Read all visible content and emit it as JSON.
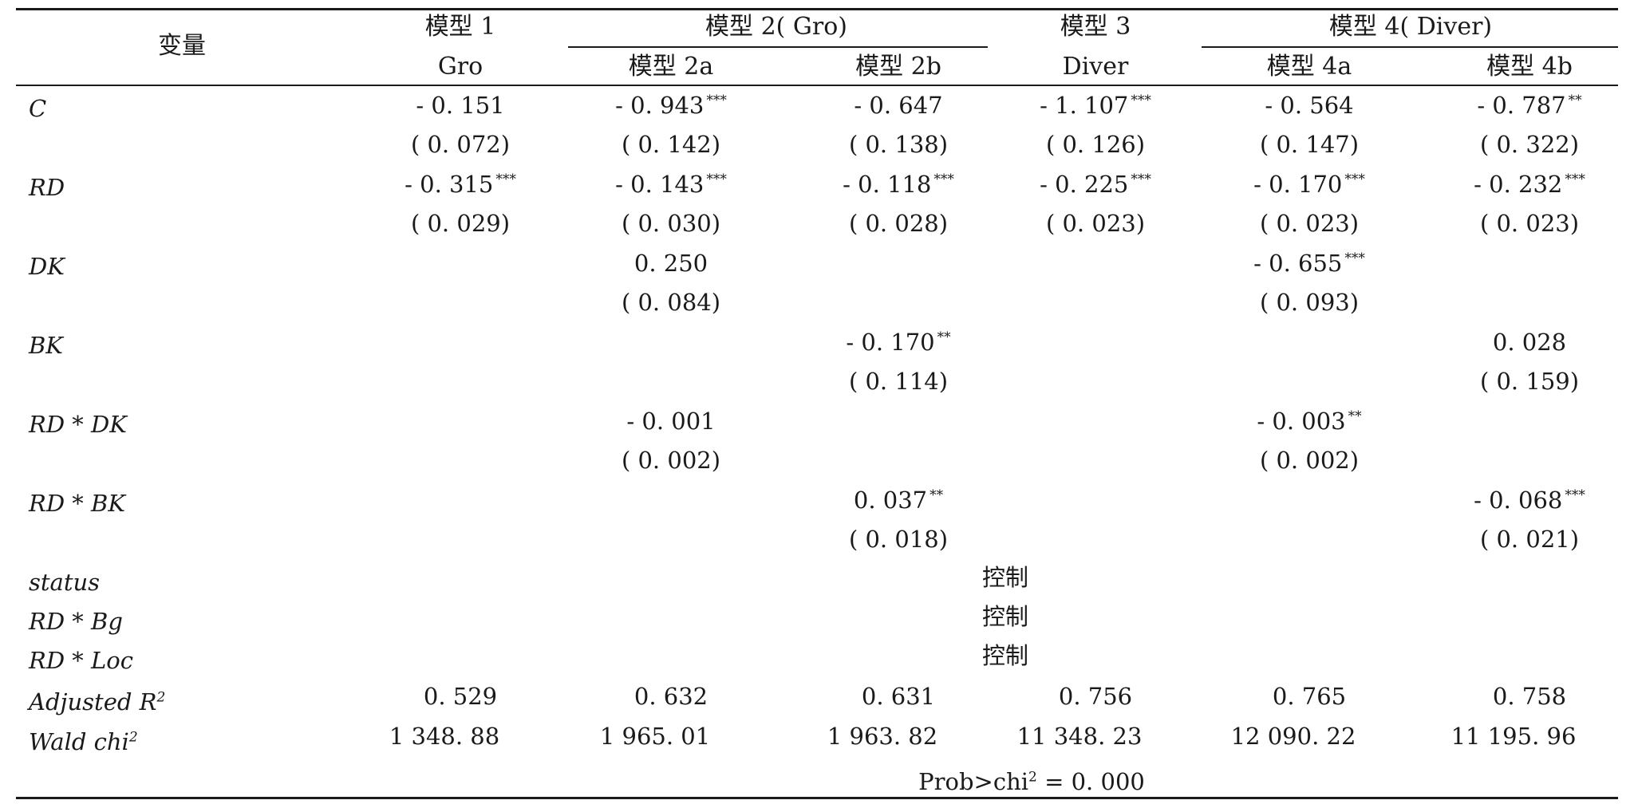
{
  "header": {
    "variable": "变量",
    "model1": {
      "title": "模型 1",
      "sub": "Gro"
    },
    "model2": {
      "title": "模型 2( Gro)",
      "subs": [
        "模型 2a",
        "模型 2b"
      ]
    },
    "model3": {
      "title": "模型 3",
      "sub": "Diver"
    },
    "model4": {
      "title": "模型 4( Diver)",
      "subs": [
        "模型 4a",
        "模型 4b"
      ]
    }
  },
  "rows": [
    {
      "var": "C",
      "coef": [
        {
          "v": "- 0. 151",
          "s": ""
        },
        {
          "v": "- 0. 943",
          "s": "***"
        },
        {
          "v": "- 0. 647",
          "s": ""
        },
        {
          "v": "- 1. 107",
          "s": "***"
        },
        {
          "v": "- 0. 564",
          "s": ""
        },
        {
          "v": "- 0. 787",
          "s": "**"
        }
      ],
      "se": [
        "( 0. 072)",
        "( 0. 142)",
        "( 0. 138)",
        "( 0. 126)",
        "( 0. 147)",
        "( 0. 322)"
      ]
    },
    {
      "var": "RD",
      "coef": [
        {
          "v": "- 0. 315",
          "s": "***"
        },
        {
          "v": "- 0. 143",
          "s": "***"
        },
        {
          "v": "- 0. 118",
          "s": "***"
        },
        {
          "v": "- 0. 225",
          "s": "***"
        },
        {
          "v": "- 0. 170",
          "s": "***"
        },
        {
          "v": "- 0. 232",
          "s": "***"
        }
      ],
      "se": [
        "( 0. 029)",
        "( 0. 030)",
        "( 0. 028)",
        "( 0. 023)",
        "( 0. 023)",
        "( 0. 023)"
      ]
    },
    {
      "var": "DK",
      "coef": [
        null,
        {
          "v": "0. 250",
          "s": ""
        },
        null,
        null,
        {
          "v": "- 0. 655",
          "s": "***"
        },
        null
      ],
      "se": [
        null,
        "( 0. 084)",
        null,
        null,
        "( 0. 093)",
        null
      ]
    },
    {
      "var": "BK",
      "coef": [
        null,
        null,
        {
          "v": "- 0. 170",
          "s": "**"
        },
        null,
        null,
        {
          "v": "0. 028",
          "s": ""
        }
      ],
      "se": [
        null,
        null,
        "( 0. 114)",
        null,
        null,
        "( 0. 159)"
      ]
    },
    {
      "var": "RD * DK",
      "coef": [
        null,
        {
          "v": "- 0. 001",
          "s": ""
        },
        null,
        null,
        {
          "v": "- 0. 003",
          "s": "**"
        },
        null
      ],
      "se": [
        null,
        "( 0. 002)",
        null,
        null,
        "( 0. 002)",
        null
      ]
    },
    {
      "var": "RD * BK",
      "coef": [
        null,
        null,
        {
          "v": "0. 037",
          "s": "**"
        },
        null,
        null,
        {
          "v": "- 0. 068",
          "s": "***"
        }
      ],
      "se": [
        null,
        null,
        "( 0. 018)",
        null,
        null,
        "( 0. 021)"
      ]
    }
  ],
  "controls": [
    {
      "var": "status",
      "value": "控制"
    },
    {
      "var": "RD * Bg",
      "value": "控制"
    },
    {
      "var": "RD * Loc",
      "value": "控制"
    }
  ],
  "adjusted_r2": {
    "label": "Adjusted R",
    "sup": "2",
    "values": [
      "0. 529",
      "0. 632",
      "0. 631",
      "0. 756",
      "0. 765",
      "0. 758"
    ]
  },
  "wald": {
    "label": "Wald chi",
    "sup": "2",
    "values": [
      "1 348. 88",
      "1 965. 01",
      "1 963. 82",
      "11 348. 23",
      "12 090. 22",
      "11 195. 96"
    ]
  },
  "prob": {
    "pre": "Prob>chi",
    "sup": "2",
    "post": " = 0. 000"
  }
}
